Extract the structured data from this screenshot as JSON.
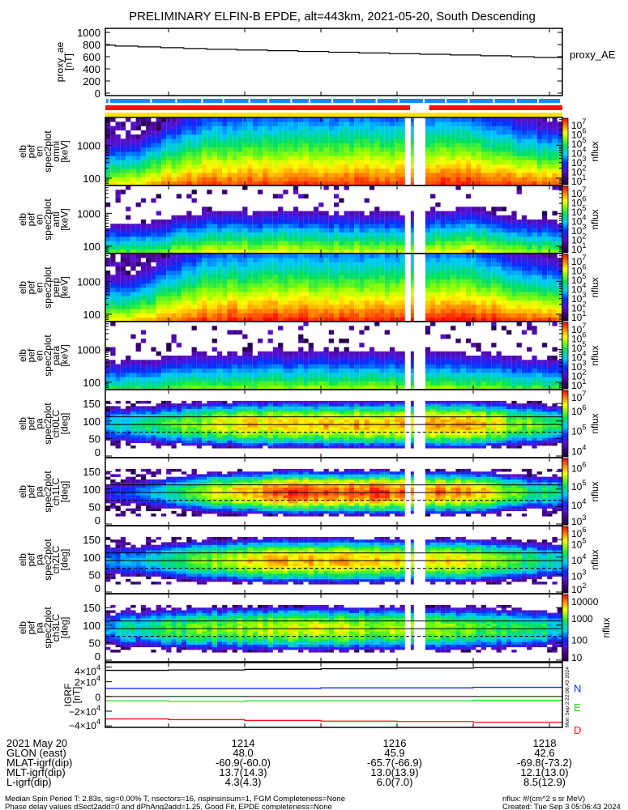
{
  "title": "PRELIMINARY ELFIN-B EPDE, alt=443km, 2021-05-20, South Descending",
  "chart_data": {
    "type": "heatmap",
    "time_axis": {
      "unit": "HHMM (minutes)",
      "range_min": [
        1212.17,
        1218.17
      ],
      "tick_values": [
        1214,
        1216,
        1218
      ],
      "tick_labels": [
        "1214",
        "1216",
        "1218"
      ],
      "data_gap_min": [
        1216.08,
        1216.35
      ],
      "gap_sample_min": 1216.2
    },
    "proxy_ae": {
      "type": "line",
      "ylabel": [
        "proxy_ae",
        "[nT]"
      ],
      "legend": "proxy_AE",
      "ylim": [
        0,
        1000
      ],
      "yticks": [
        0,
        200,
        400,
        600,
        800,
        1000
      ],
      "ytick_labels": [
        "0",
        "200",
        "400",
        "600",
        "800",
        "1000"
      ],
      "x": [
        1212.17,
        1212.3,
        1212.6,
        1212.9,
        1213.2,
        1213.5,
        1213.9,
        1214.3,
        1214.7,
        1215.1,
        1215.5,
        1215.9,
        1216.3,
        1216.7,
        1217.1,
        1217.5,
        1217.8,
        1218.17
      ],
      "y": [
        790,
        775,
        762,
        748,
        735,
        722,
        710,
        698,
        686,
        674,
        662,
        650,
        640,
        628,
        615,
        600,
        588,
        575
      ]
    },
    "status_bars": [
      {
        "name": "spin-quality",
        "color": "#1e88ef",
        "breaks_min": [
          1212.22,
          1212.77,
          1213.1,
          1213.44,
          1213.72,
          1214.06,
          1214.31,
          1214.61,
          1214.85,
          1215.15,
          1215.44,
          1215.73,
          1216.02,
          1216.35,
          1216.64,
          1216.94,
          1217.27,
          1217.56,
          1217.85,
          1218.15
        ]
      },
      {
        "name": "data-coverage",
        "color": "#ff1010",
        "segments_min": [
          [
            1212.17,
            1216.17
          ],
          [
            1216.42,
            1218.17
          ]
        ]
      },
      {
        "name": "fit-quality",
        "color": "#ffe600",
        "segments_min": [
          [
            1212.17,
            1218.17
          ]
        ]
      }
    ],
    "time_nodes_min": [
      1212.17,
      1212.6,
      1213.0,
      1213.5,
      1214.5,
      1216.0,
      1217.0,
      1217.6,
      1218.17
    ],
    "spectrograms": [
      {
        "kind": "energy",
        "label": [
          "elb",
          "pef",
          "en",
          "spec2plot",
          "omni",
          "[keV]"
        ],
        "ylim_keV": [
          60,
          7000
        ],
        "yticks": [
          100,
          1000
        ],
        "ytick_labels": [
          "100",
          "1000"
        ],
        "log10_flux_at_100keV": [
          5.0,
          5.3,
          5.9,
          6.3,
          6.4,
          6.4,
          6.5,
          6.2,
          6.0
        ],
        "spectral_slope": [
          3.0,
          2.8,
          2.3,
          1.9,
          1.8,
          1.8,
          1.9,
          2.3,
          2.6
        ],
        "fill": 0.7,
        "colorbar": {
          "title": "nflux",
          "log10_range": [
            0.8,
            7.0
          ],
          "ticks": [
            {
              "base": "10",
              "exp": "7",
              "v": 7
            },
            {
              "base": "10",
              "exp": "6",
              "v": 6
            },
            {
              "base": "10",
              "exp": "5",
              "v": 5
            },
            {
              "base": "10",
              "exp": "4",
              "v": 4
            },
            {
              "base": "10",
              "exp": "3",
              "v": 3
            },
            {
              "base": "10",
              "exp": "2",
              "v": 2
            },
            {
              "base": "10",
              "exp": "1",
              "v": 1.2
            }
          ]
        }
      },
      {
        "kind": "energy",
        "label": [
          "elb",
          "pef",
          "en",
          "spec2plot",
          "anti",
          "[keV]"
        ],
        "ylim_keV": [
          60,
          7000
        ],
        "yticks": [
          100,
          1000
        ],
        "ytick_labels": [
          "100",
          "1000"
        ],
        "log10_flux_at_100keV": [
          4.0,
          4.2,
          4.5,
          5.0,
          5.0,
          4.8,
          5.3,
          4.6,
          4.3
        ],
        "spectral_slope": [
          3.6,
          3.5,
          3.3,
          3.1,
          3.0,
          3.0,
          3.0,
          3.3,
          3.5
        ],
        "fill": 0.12,
        "colorbar": {
          "title": "nflux",
          "log10_range": [
            0.8,
            7.0
          ],
          "ticks": [
            {
              "base": "10",
              "exp": "7",
              "v": 7
            },
            {
              "base": "10",
              "exp": "6",
              "v": 6
            },
            {
              "base": "10",
              "exp": "5",
              "v": 5
            },
            {
              "base": "10",
              "exp": "4",
              "v": 4
            },
            {
              "base": "10",
              "exp": "3",
              "v": 3
            },
            {
              "base": "10",
              "exp": "2",
              "v": 2
            },
            {
              "base": "10",
              "exp": "1",
              "v": 1.2
            }
          ]
        }
      },
      {
        "kind": "energy",
        "label": [
          "elb",
          "pef",
          "en",
          "spec2plot",
          "perp",
          "[keV]"
        ],
        "ylim_keV": [
          60,
          7000
        ],
        "yticks": [
          100,
          1000
        ],
        "ytick_labels": [
          "100",
          "1000"
        ],
        "log10_flux_at_100keV": [
          5.1,
          5.4,
          6.0,
          6.4,
          6.5,
          6.5,
          6.6,
          6.3,
          6.1
        ],
        "spectral_slope": [
          3.0,
          2.8,
          2.3,
          1.9,
          1.8,
          1.8,
          1.9,
          2.3,
          2.6
        ],
        "fill": 0.7,
        "colorbar": {
          "title": "nflux",
          "log10_range": [
            0.8,
            7.0
          ],
          "ticks": [
            {
              "base": "10",
              "exp": "7",
              "v": 7
            },
            {
              "base": "10",
              "exp": "6",
              "v": 6
            },
            {
              "base": "10",
              "exp": "5",
              "v": 5
            },
            {
              "base": "10",
              "exp": "4",
              "v": 4
            },
            {
              "base": "10",
              "exp": "3",
              "v": 3
            },
            {
              "base": "10",
              "exp": "2",
              "v": 2
            },
            {
              "base": "10",
              "exp": "1",
              "v": 1.2
            }
          ]
        }
      },
      {
        "kind": "energy",
        "label": [
          "elb",
          "pef",
          "en",
          "spec2plot",
          "para",
          "[keV]"
        ],
        "ylim_keV": [
          60,
          7000
        ],
        "yticks": [
          100,
          1000
        ],
        "ytick_labels": [
          "100",
          "1000"
        ],
        "log10_flux_at_100keV": [
          3.8,
          3.9,
          4.2,
          4.4,
          4.6,
          4.6,
          4.5,
          4.2,
          4.0
        ],
        "spectral_slope": [
          3.4,
          3.3,
          3.2,
          3.1,
          3.0,
          3.0,
          3.1,
          3.2,
          3.3
        ],
        "fill": 0.12,
        "colorbar": {
          "title": "nflux",
          "log10_range": [
            0.8,
            7.0
          ],
          "ticks": [
            {
              "base": "10",
              "exp": "7",
              "v": 7
            },
            {
              "base": "10",
              "exp": "6",
              "v": 6
            },
            {
              "base": "10",
              "exp": "5",
              "v": 5
            },
            {
              "base": "10",
              "exp": "4",
              "v": 4
            },
            {
              "base": "10",
              "exp": "3",
              "v": 3
            },
            {
              "base": "10",
              "exp": "2",
              "v": 2
            },
            {
              "base": "10",
              "exp": "1",
              "v": 1.2
            }
          ]
        }
      },
      {
        "kind": "pitch",
        "label": [
          "elb",
          "pef",
          "pa",
          "spec2plot",
          "ch0LC",
          "[deg]"
        ],
        "ylim_deg": [
          0,
          185
        ],
        "yticks": [
          0,
          50,
          100,
          150
        ],
        "ytick_labels": [
          "0",
          "50",
          "100",
          "150"
        ],
        "loss_cone_lines_deg": {
          "solid": [
            90,
            112
          ],
          "dashed": [
            68
          ]
        },
        "log10_flux_at_90deg": [
          5.2,
          5.4,
          5.8,
          6.1,
          6.5,
          6.4,
          6.5,
          6.0,
          5.5
        ],
        "anisotropy_drop": 1.3,
        "fill": 0.4,
        "colorbar": {
          "title": "nflux",
          "log10_range": [
            3.7,
            7.0
          ],
          "ticks": [
            {
              "base": "10",
              "exp": "7",
              "v": 7
            },
            {
              "base": "10",
              "exp": "6",
              "v": 6
            },
            {
              "base": "10",
              "exp": "5",
              "v": 5
            },
            {
              "base": "10",
              "exp": "4",
              "v": 4
            }
          ]
        }
      },
      {
        "kind": "pitch",
        "label": [
          "elb",
          "pef",
          "pa",
          "spec2plot",
          "ch1LC",
          "[deg]"
        ],
        "ylim_deg": [
          0,
          185
        ],
        "yticks": [
          0,
          50,
          100,
          150
        ],
        "ytick_labels": [
          "0",
          "50",
          "100",
          "150"
        ],
        "loss_cone_lines_deg": {
          "solid": [
            90,
            112
          ],
          "dashed": [
            68
          ]
        },
        "log10_flux_at_90deg": [
          4.0,
          4.2,
          4.8,
          5.6,
          6.3,
          6.2,
          6.0,
          5.2,
          4.8
        ],
        "anisotropy_drop": 1.8,
        "fill": 0.4,
        "colorbar": {
          "title": "nflux",
          "log10_range": [
            2.9,
            6.5
          ],
          "ticks": [
            {
              "base": "10",
              "exp": "6",
              "v": 6
            },
            {
              "base": "10",
              "exp": "5",
              "v": 5
            },
            {
              "base": "10",
              "exp": "4",
              "v": 4
            },
            {
              "base": "10",
              "exp": "3",
              "v": 3.05
            }
          ]
        }
      },
      {
        "kind": "pitch",
        "label": [
          "elb",
          "pef",
          "pa",
          "spec2plot",
          "ch2LC",
          "[deg]"
        ],
        "ylim_deg": [
          0,
          185
        ],
        "yticks": [
          0,
          50,
          100,
          150
        ],
        "ytick_labels": [
          "0",
          "50",
          "100",
          "150"
        ],
        "loss_cone_lines_deg": {
          "solid": [
            90,
            112
          ],
          "dashed": [
            68
          ]
        },
        "log10_flux_at_90deg": [
          3.5,
          3.8,
          4.2,
          4.8,
          5.5,
          5.3,
          5.2,
          4.5,
          4.0
        ],
        "anisotropy_drop": 1.8,
        "fill": 0.35,
        "colorbar": {
          "title": "nflux",
          "log10_range": [
            1.9,
            6.1
          ],
          "ticks": [
            {
              "base": "10",
              "exp": "6",
              "v": 5.95
            },
            {
              "base": "10",
              "exp": "5",
              "v": 5
            },
            {
              "base": "10",
              "exp": "4",
              "v": 4
            },
            {
              "base": "10",
              "exp": "3",
              "v": 3
            },
            {
              "base": "10",
              "exp": "2",
              "v": 2.1
            }
          ]
        }
      },
      {
        "kind": "pitch",
        "label": [
          "elb",
          "pef",
          "pa",
          "spec2plot",
          "ch3LC",
          "[deg]"
        ],
        "ylim_deg": [
          0,
          185
        ],
        "yticks": [
          0,
          50,
          100,
          150
        ],
        "ytick_labels": [
          "0",
          "50",
          "100",
          "150"
        ],
        "loss_cone_lines_deg": {
          "solid": [
            90,
            112
          ],
          "dashed": [
            68
          ]
        },
        "log10_flux_at_90deg": [
          2.4,
          2.6,
          2.9,
          3.1,
          3.3,
          3.2,
          3.1,
          2.8,
          2.6
        ],
        "anisotropy_drop": 1.2,
        "fill": 0.35,
        "colorbar": {
          "title": "nflux",
          "log10_range": [
            1.0,
            4.1
          ],
          "ticks": [
            {
              "base": "10000",
              "exp": "",
              "v": 4
            },
            {
              "base": "1000",
              "exp": "",
              "v": 3
            },
            {
              "base": "100",
              "exp": "",
              "v": 2
            },
            {
              "base": "10",
              "exp": "",
              "v": 1.05
            }
          ]
        }
      }
    ],
    "igrf": {
      "type": "line",
      "ylabel": [
        "IGRF",
        "[nT]"
      ],
      "ylim": [
        -42000,
        46000
      ],
      "ytick_labels": [
        {
          "base": "4×10",
          "exp": "4",
          "v": 40000
        },
        {
          "base": "2×10",
          "exp": "4",
          "v": 20000
        },
        {
          "base": "0",
          "exp": "",
          "v": 0
        },
        {
          "base": "−2×10",
          "exp": "4",
          "v": -20000
        },
        {
          "base": "−4×10",
          "exp": "4",
          "v": -40000
        }
      ],
      "x": [
        1212.17,
        1213.0,
        1214.0,
        1215.0,
        1216.0,
        1217.0,
        1218.17
      ],
      "series": [
        {
          "name": "total",
          "legend": "",
          "color": "#000000",
          "values": [
            35500,
            36000,
            36800,
            37600,
            38400,
            39100,
            39600
          ]
        },
        {
          "name": "N",
          "legend": "N",
          "color": "#1030ff",
          "values": [
            11000,
            11000,
            11000,
            11700,
            11700,
            12400,
            12400
          ]
        },
        {
          "name": "E",
          "legend": "E",
          "color": "#20e020",
          "values": [
            -6000,
            -6800,
            -6000,
            -6000,
            -6000,
            -5200,
            -4800
          ]
        },
        {
          "name": "D",
          "legend": "D",
          "color": "#ff1010",
          "values": [
            -30500,
            -31500,
            -32500,
            -33500,
            -34000,
            -35000,
            -35200
          ]
        }
      ],
      "side_stamp": "Mon Sep  2 22:06:43 2024"
    }
  },
  "ephemeris": {
    "date": "2021 May 20",
    "time_labels": [
      "1214",
      "1216",
      "1218"
    ],
    "rows": [
      {
        "label": "GLON (east)",
        "values": [
          "48.0",
          "45.9",
          "42.6"
        ]
      },
      {
        "label": "MLAT-igrf(dip)",
        "values": [
          "-60.9(-60.0)",
          "-65.7(-66.9)",
          "-69.8(-73.2)"
        ]
      },
      {
        "label": "MLT-igrf(dip)",
        "values": [
          "13.7(14.3)",
          "13.0(13.9)",
          "12.1(13.0)"
        ]
      },
      {
        "label": "L-igrf(dip)",
        "values": [
          "4.3(4.3)",
          "6.0(7.0)",
          "8.5(12.9)"
        ]
      }
    ]
  },
  "footer": {
    "line1": "Median Spin Period T: 2.83s, sig=0.00% T, nsectors=16, nspinsinsum=1, FGM Completeness=None",
    "line2": "Phase delay values dSect2add=0 and dPhAng2add=1.25, Good Fit, EPDE completeness=None",
    "units": "nflux: #/(cm^2 s sr MeV)",
    "created": "Created: Tue Sep  3 05:06:43 2024"
  }
}
